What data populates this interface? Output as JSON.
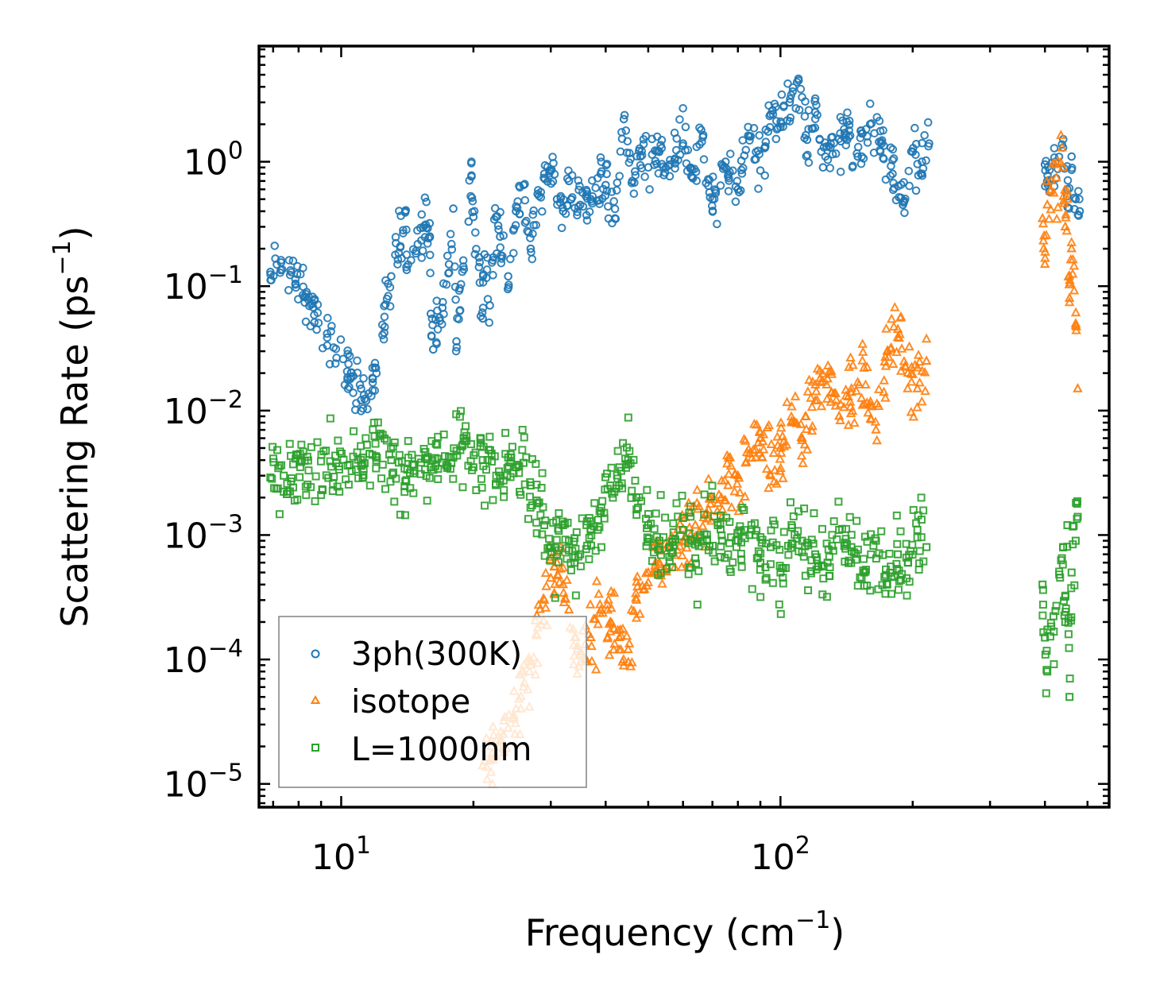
{
  "chart_data": {
    "type": "scatter",
    "title": "",
    "xlabel": {
      "text": "Frequency (cm",
      "sup": "−1",
      "tail": ")"
    },
    "ylabel": {
      "text": "Scattering Rate (ps",
      "sup": "−1",
      "tail": ")"
    },
    "x_scale": "log",
    "y_scale": "log",
    "xlim": [
      6.5,
      560
    ],
    "ylim": [
      6.5e-06,
      8.5
    ],
    "x_ticks": [
      {
        "value": 10,
        "base": "10",
        "exp": "1"
      },
      {
        "value": 100,
        "base": "10",
        "exp": "2"
      }
    ],
    "y_ticks": [
      {
        "value": 1,
        "base": "10",
        "exp": "0"
      },
      {
        "value": 0.1,
        "base": "10",
        "exp": "−1"
      },
      {
        "value": 0.01,
        "base": "10",
        "exp": "−2"
      },
      {
        "value": 0.001,
        "base": "10",
        "exp": "−3"
      },
      {
        "value": 0.0001,
        "base": "10",
        "exp": "−4"
      },
      {
        "value": 1e-05,
        "base": "10",
        "exp": "−5"
      }
    ],
    "legend_position": "lower-left",
    "series": [
      {
        "name": "3ph(300K)",
        "marker": "circle",
        "color": "#1f77b4",
        "x": [
          6.9,
          7.3,
          11.1,
          11.4,
          11.8,
          12.0,
          13.0,
          14.0,
          14.1,
          15.9,
          16.0,
          16.2,
          17.0,
          17.6,
          18.0,
          18.3,
          19.5,
          19.8,
          20.0,
          20.6,
          21.0,
          21.2,
          21.8,
          22.5,
          23.0,
          24.0,
          25.0,
          26.0,
          27.0,
          28.0,
          29.0,
          30.0,
          31.0,
          32.0,
          33.0,
          35.0,
          37.0,
          39.0,
          40.0,
          42.0,
          44.0,
          46.0,
          48.0,
          50.0,
          53.0,
          56.0,
          60.0,
          63.0,
          66.0,
          70.0,
          75.0,
          80.0,
          85.0,
          90.0,
          95.0,
          100.0,
          105.0,
          110.0,
          115.0,
          120.0,
          125.0,
          130.0,
          140.0,
          150.0,
          160.0,
          170.0,
          180.0,
          190.0,
          200.0,
          210.0,
          218.0,
          400.0,
          405.0,
          440.0,
          450.0,
          460.0,
          470.0,
          480.0
        ],
        "y": [
          0.13,
          0.155,
          0.015,
          0.012,
          0.018,
          0.022,
          0.12,
          0.4,
          0.135,
          0.32,
          0.06,
          0.031,
          0.067,
          0.15,
          0.42,
          0.036,
          0.33,
          0.76,
          0.36,
          0.17,
          0.055,
          0.18,
          0.07,
          0.36,
          0.25,
          0.12,
          0.4,
          0.65,
          0.2,
          0.55,
          0.8,
          0.85,
          0.5,
          0.4,
          0.7,
          0.45,
          0.5,
          0.8,
          0.65,
          0.35,
          2.2,
          0.7,
          1.1,
          0.9,
          1.2,
          0.95,
          1.4,
          0.75,
          1.8,
          0.5,
          1.0,
          0.6,
          1.6,
          0.85,
          2.4,
          1.9,
          3.0,
          4.5,
          1.5,
          2.5,
          0.9,
          1.3,
          1.7,
          1.1,
          2.0,
          1.4,
          0.8,
          0.45,
          1.2,
          1.0,
          1.4,
          0.95,
          0.7,
          1.3,
          0.6,
          1.1,
          0.5,
          0.4
        ],
        "y_spread_decades": 0.22
      },
      {
        "name": "isotope",
        "marker": "triangle",
        "color": "#ff7f0e",
        "x": [
          21.0,
          22.0,
          23.0,
          24.0,
          25.0,
          26.0,
          27.0,
          28.0,
          29.0,
          30.0,
          31.0,
          32.0,
          33.0,
          34.0,
          35.0,
          37.0,
          39.0,
          41.0,
          43.0,
          45.0,
          47.0,
          50.0,
          53.0,
          56.0,
          60.0,
          64.0,
          68.0,
          72.0,
          76.0,
          80.0,
          85.0,
          90.0,
          95.0,
          100.0,
          106.0,
          112.0,
          120.0,
          128.0,
          136.0,
          145.0,
          155.0,
          165.0,
          175.0,
          185.0,
          195.0,
          205.0,
          215.0,
          395.0,
          400.0,
          405.0,
          440.0,
          445.0,
          450.0,
          455.0,
          460.0,
          470.0,
          475.0
        ],
        "y": [
          1.4e-05,
          1.6e-05,
          2.2e-05,
          2.8e-05,
          4e-05,
          6e-05,
          9e-05,
          0.00018,
          0.0003,
          0.00045,
          0.0006,
          0.0004,
          0.00025,
          0.00015,
          0.00011,
          0.00015,
          0.00025,
          0.0002,
          0.00015,
          0.00012,
          0.0003,
          0.0005,
          0.0006,
          0.0008,
          0.0009,
          0.0012,
          0.0015,
          0.0018,
          0.0025,
          0.003,
          0.0045,
          0.006,
          0.003,
          0.005,
          0.008,
          0.006,
          0.012,
          0.018,
          0.009,
          0.014,
          0.022,
          0.007,
          0.03,
          0.045,
          0.02,
          0.015,
          0.025,
          0.35,
          0.15,
          0.45,
          0.9,
          0.3,
          0.5,
          0.08,
          0.2,
          0.05,
          0.015
        ],
        "y_spread_decades": 0.28
      },
      {
        "name": "L=1000nm",
        "marker": "square",
        "color": "#2ca02c",
        "x": [
          6.9,
          7.4,
          11.2,
          11.6,
          12.0,
          13.0,
          14.0,
          15.0,
          16.0,
          17.0,
          18.0,
          19.0,
          20.0,
          21.0,
          22.0,
          23.0,
          24.0,
          25.0,
          26.0,
          27.0,
          28.0,
          29.0,
          30.0,
          31.0,
          32.0,
          33.0,
          34.0,
          35.0,
          37.0,
          39.0,
          41.0,
          43.0,
          45.0,
          47.0,
          50.0,
          53.0,
          56.0,
          60.0,
          64.0,
          68.0,
          72.0,
          76.0,
          80.0,
          85.0,
          90.0,
          95.0,
          100.0,
          106.0,
          112.0,
          120.0,
          128.0,
          136.0,
          145.0,
          155.0,
          165.0,
          175.0,
          185.0,
          195.0,
          205.0,
          215.0,
          395.0,
          400.0,
          405.0,
          440.0,
          445.0,
          450.0,
          455.0,
          460.0,
          470.0,
          475.0
        ],
        "y": [
          0.0029,
          0.003,
          0.0042,
          0.0045,
          0.0043,
          0.004,
          0.0027,
          0.0041,
          0.0035,
          0.0038,
          0.0042,
          0.006,
          0.0035,
          0.004,
          0.0045,
          0.003,
          0.0042,
          0.0035,
          0.0038,
          0.0025,
          0.0018,
          0.0012,
          0.0008,
          0.0007,
          0.0012,
          0.0009,
          0.0006,
          0.0007,
          0.0011,
          0.0015,
          0.0025,
          0.0035,
          0.004,
          0.002,
          0.0012,
          0.0009,
          0.0008,
          0.0011,
          0.00065,
          0.0009,
          0.0012,
          0.0007,
          0.0009,
          0.001,
          0.0006,
          0.0008,
          0.0005,
          0.0012,
          0.0009,
          0.0007,
          0.0006,
          0.0011,
          0.0008,
          0.0005,
          0.0009,
          0.0004,
          0.0007,
          0.0006,
          0.0011,
          0.0008,
          0.0004,
          0.00015,
          8e-05,
          0.0008,
          0.0002,
          0.0012,
          5e-05,
          0.0005,
          0.0009,
          0.0014
        ],
        "y_spread_decades": 0.3
      }
    ]
  }
}
